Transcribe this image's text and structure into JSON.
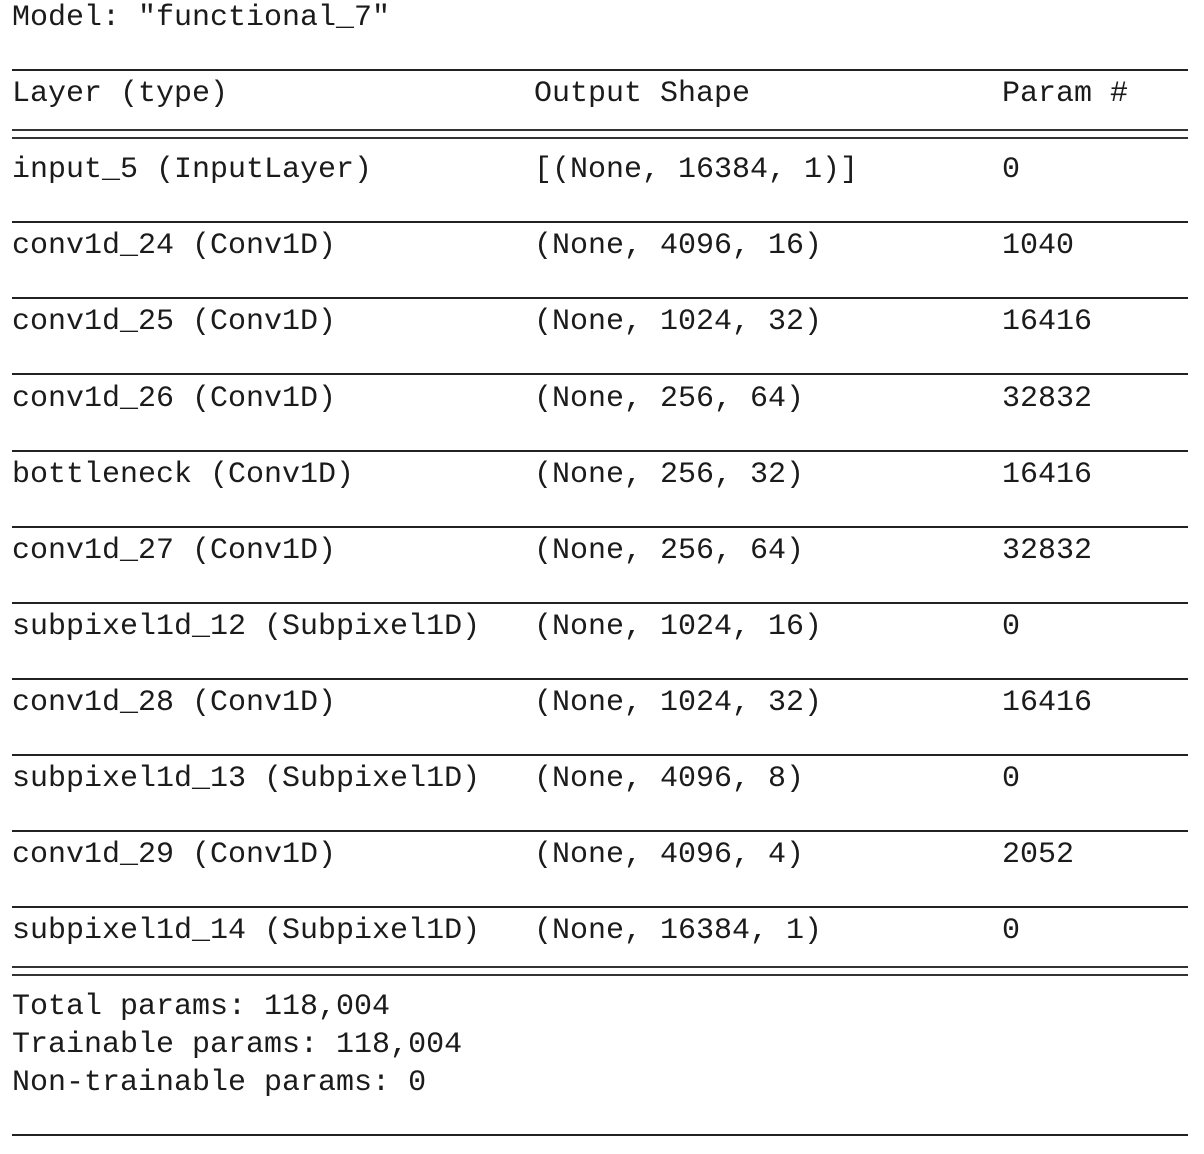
{
  "model_title": "Model: \"functional_7\"",
  "header": {
    "layer": "Layer (type)",
    "output_shape": "Output Shape",
    "params": "Param #"
  },
  "rows": [
    {
      "layer": "input_5 (InputLayer)",
      "output_shape": "[(None, 16384, 1)]",
      "params": "0"
    },
    {
      "layer": "conv1d_24 (Conv1D)",
      "output_shape": "(None, 4096, 16)",
      "params": "1040"
    },
    {
      "layer": "conv1d_25 (Conv1D)",
      "output_shape": "(None, 1024, 32)",
      "params": "16416"
    },
    {
      "layer": "conv1d_26 (Conv1D)",
      "output_shape": "(None, 256, 64)",
      "params": "32832"
    },
    {
      "layer": "bottleneck (Conv1D)",
      "output_shape": "(None, 256, 32)",
      "params": "16416"
    },
    {
      "layer": "conv1d_27 (Conv1D)",
      "output_shape": "(None, 256, 64)",
      "params": "32832"
    },
    {
      "layer": "subpixel1d_12 (Subpixel1D)",
      "output_shape": "(None, 1024, 16)",
      "params": "0"
    },
    {
      "layer": "conv1d_28 (Conv1D)",
      "output_shape": "(None, 1024, 32)",
      "params": "16416"
    },
    {
      "layer": "subpixel1d_13 (Subpixel1D)",
      "output_shape": "(None, 4096, 8)",
      "params": "0"
    },
    {
      "layer": "conv1d_29 (Conv1D)",
      "output_shape": "(None, 4096, 4)",
      "params": "2052"
    },
    {
      "layer": "subpixel1d_14 (Subpixel1D)",
      "output_shape": "(None, 16384, 1)",
      "params": "0"
    }
  ],
  "summary": {
    "total": "Total params: 118,004",
    "trainable": "Trainable params: 118,004",
    "non_trainable": "Non-trainable params: 0"
  }
}
